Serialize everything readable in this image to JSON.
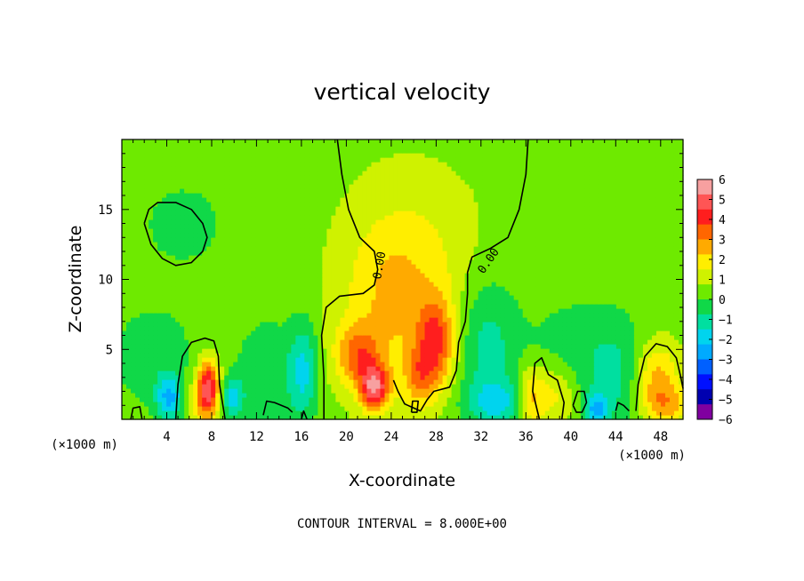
{
  "chart_data": {
    "type": "heatmap",
    "title": "vertical velocity",
    "xlabel": "X-coordinate",
    "ylabel": "Z-coordinate",
    "x_unit_label": "(×1000 m)",
    "x_unit_label_right": "(×1000 m)",
    "xlim": [
      0,
      50
    ],
    "ylim": [
      0,
      20
    ],
    "x_ticks": [
      4,
      8,
      12,
      16,
      20,
      24,
      28,
      32,
      36,
      40,
      44,
      48
    ],
    "y_ticks": [
      5,
      10,
      15
    ],
    "colorbar": {
      "ticks": [
        6,
        5,
        4,
        3,
        2,
        1,
        0,
        -1,
        -2,
        -3,
        -4,
        -5,
        -6
      ],
      "colors": [
        "#f7a0a0",
        "#ff5555",
        "#ff1e1e",
        "#ff6600",
        "#ffaa00",
        "#ffee00",
        "#cff200",
        "#6eea00",
        "#10d848",
        "#00dfa0",
        "#00d4ee",
        "#00aaff",
        "#0060ff",
        "#0010ff",
        "#0000b0",
        "#8000a0"
      ],
      "range": [
        -6,
        6
      ]
    },
    "background_value": 0.5,
    "features": [
      {
        "x": 7.7,
        "z": 2.6,
        "amp": 3.8,
        "sx": 0.7,
        "sz": 1.3
      },
      {
        "x": 7.4,
        "z": 1.2,
        "amp": 2.0,
        "sx": 0.9,
        "sz": 1.2
      },
      {
        "x": 21.0,
        "z": 4.6,
        "amp": 2.4,
        "sx": 1.4,
        "sz": 1.5
      },
      {
        "x": 22.5,
        "z": 2.3,
        "amp": 4.2,
        "sx": 0.9,
        "sz": 1.1
      },
      {
        "x": 23.6,
        "z": 8.0,
        "amp": 1.3,
        "sx": 3.0,
        "sz": 4.5
      },
      {
        "x": 28.0,
        "z": 5.5,
        "amp": 3.0,
        "sx": 1.2,
        "sz": 2.2
      },
      {
        "x": 26.5,
        "z": 3.0,
        "amp": 1.8,
        "sx": 1.0,
        "sz": 1.5
      },
      {
        "x": 26.5,
        "z": 11.0,
        "amp": 1.0,
        "sx": 4.0,
        "sz": 4.5
      },
      {
        "x": 36.5,
        "z": 1.6,
        "amp": 2.4,
        "sx": 0.9,
        "sz": 1.5
      },
      {
        "x": 38.8,
        "z": 1.8,
        "amp": 1.4,
        "sx": 1.2,
        "sz": 1.5
      },
      {
        "x": 47.6,
        "z": 3.0,
        "amp": 2.2,
        "sx": 1.4,
        "sz": 1.8
      },
      {
        "x": 48.6,
        "z": 1.0,
        "amp": 1.6,
        "sx": 1.5,
        "sz": 1.0
      },
      {
        "x": 4.2,
        "z": 1.6,
        "amp": -2.6,
        "sx": 0.8,
        "sz": 1.1
      },
      {
        "x": 9.8,
        "z": 1.6,
        "amp": -2.2,
        "sx": 0.7,
        "sz": 1.0
      },
      {
        "x": 2.8,
        "z": 4.5,
        "amp": -0.9,
        "sx": 3.0,
        "sz": 3.0
      },
      {
        "x": 16.2,
        "z": 3.5,
        "amp": -2.0,
        "sx": 0.9,
        "sz": 2.5
      },
      {
        "x": 13.0,
        "z": 3.0,
        "amp": -1.2,
        "sx": 2.0,
        "sz": 3.0
      },
      {
        "x": 32.5,
        "z": 5.5,
        "amp": -1.6,
        "sx": 2.0,
        "sz": 3.5
      },
      {
        "x": 33.5,
        "z": 1.2,
        "amp": -1.9,
        "sx": 2.0,
        "sz": 1.2
      },
      {
        "x": 42.3,
        "z": 0.7,
        "amp": -2.6,
        "sx": 0.7,
        "sz": 0.8
      },
      {
        "x": 44.2,
        "z": 3.0,
        "amp": -1.3,
        "sx": 2.0,
        "sz": 3.0
      },
      {
        "x": 40.0,
        "z": 5.0,
        "amp": -0.8,
        "sx": 3.0,
        "sz": 3.0
      },
      {
        "x": 5.5,
        "z": 14.0,
        "amp": -1.0,
        "sx": 2.5,
        "sz": 2.0
      }
    ],
    "contours": [
      {
        "value": 0.0,
        "points": [
          [
            19.2,
            20
          ],
          [
            19.6,
            17.5
          ],
          [
            20.2,
            15.0
          ],
          [
            21.2,
            13.0
          ],
          [
            22.5,
            12.0
          ],
          [
            22.8,
            10.7
          ],
          [
            22.5,
            9.6
          ],
          [
            21.5,
            9.0
          ],
          [
            19.4,
            8.8
          ],
          [
            18.2,
            8.0
          ],
          [
            17.8,
            6.0
          ],
          [
            18.0,
            3.0
          ],
          [
            18.0,
            0.0
          ]
        ]
      },
      {
        "value": 0.0,
        "points": [
          [
            36.2,
            20
          ],
          [
            36.0,
            17.5
          ],
          [
            35.4,
            15.0
          ],
          [
            34.4,
            13.0
          ],
          [
            32.8,
            12.2
          ],
          [
            31.2,
            11.6
          ],
          [
            30.8,
            10.5
          ],
          [
            30.8,
            9.0
          ],
          [
            30.6,
            7.0
          ],
          [
            30.0,
            5.5
          ],
          [
            29.8,
            3.5
          ],
          [
            29.2,
            2.3
          ],
          [
            27.8,
            2.0
          ],
          [
            27.2,
            1.4
          ],
          [
            26.6,
            0.6
          ],
          [
            25.2,
            1.1
          ],
          [
            24.6,
            2.0
          ],
          [
            24.2,
            2.8
          ]
        ]
      },
      {
        "value": 0.0,
        "points": [
          [
            2.0,
            14.0
          ],
          [
            2.4,
            15.0
          ],
          [
            3.2,
            15.5
          ],
          [
            4.8,
            15.5
          ],
          [
            6.2,
            15.0
          ],
          [
            7.2,
            14.0
          ],
          [
            7.6,
            13.0
          ],
          [
            7.2,
            12.0
          ],
          [
            6.2,
            11.2
          ],
          [
            4.8,
            11.0
          ],
          [
            3.6,
            11.5
          ],
          [
            2.6,
            12.5
          ],
          [
            2.0,
            14.0
          ]
        ]
      },
      {
        "value": 0.0,
        "points": [
          [
            4.8,
            0.0
          ],
          [
            5.0,
            2.5
          ],
          [
            5.4,
            4.5
          ],
          [
            6.2,
            5.5
          ],
          [
            7.4,
            5.8
          ],
          [
            8.2,
            5.6
          ],
          [
            8.6,
            4.5
          ],
          [
            8.7,
            2.5
          ],
          [
            9.0,
            1.0
          ],
          [
            9.2,
            0.0
          ]
        ]
      },
      {
        "value": 0.0,
        "points": [
          [
            37.2,
            0.0
          ],
          [
            36.6,
            2.0
          ],
          [
            36.8,
            4.0
          ],
          [
            37.4,
            4.4
          ],
          [
            38.0,
            3.2
          ],
          [
            38.8,
            2.8
          ],
          [
            39.4,
            1.2
          ],
          [
            39.2,
            0.0
          ]
        ]
      },
      {
        "value": 0.0,
        "points": [
          [
            45.8,
            0.6
          ],
          [
            46.0,
            2.5
          ],
          [
            46.6,
            4.5
          ],
          [
            47.6,
            5.4
          ],
          [
            48.6,
            5.2
          ],
          [
            49.4,
            4.4
          ],
          [
            49.8,
            3.0
          ],
          [
            50.0,
            2.2
          ]
        ]
      },
      {
        "value": 0.0,
        "points": [
          [
            40.2,
            1.0
          ],
          [
            40.6,
            2.0
          ],
          [
            41.2,
            2.0
          ],
          [
            41.4,
            1.2
          ],
          [
            41.0,
            0.5
          ],
          [
            40.5,
            0.5
          ],
          [
            40.2,
            1.0
          ]
        ]
      },
      {
        "value": 0.0,
        "points": [
          [
            12.6,
            0.3
          ],
          [
            12.9,
            1.3
          ],
          [
            13.6,
            1.2
          ],
          [
            14.8,
            0.8
          ],
          [
            15.2,
            0.5
          ]
        ]
      },
      {
        "value": 0.0,
        "points": [
          [
            0.8,
            0.0
          ],
          [
            1.0,
            0.8
          ],
          [
            1.6,
            0.9
          ],
          [
            1.8,
            0.0
          ]
        ]
      },
      {
        "value": 0.0,
        "points": [
          [
            25.8,
            0.5
          ],
          [
            25.9,
            1.3
          ],
          [
            26.4,
            1.3
          ],
          [
            26.3,
            0.5
          ],
          [
            25.8,
            0.5
          ]
        ]
      },
      {
        "value": 0.0,
        "points": [
          [
            44.0,
            0.6
          ],
          [
            44.2,
            1.2
          ],
          [
            44.7,
            1.0
          ],
          [
            45.2,
            0.6
          ]
        ]
      },
      {
        "value": 0.0,
        "points": [
          [
            16.0,
            0.0
          ],
          [
            16.2,
            0.6
          ],
          [
            16.5,
            0.0
          ]
        ]
      }
    ],
    "contour_labels": [
      {
        "text": "0.00",
        "x": 23.0,
        "z": 11.0,
        "rotate": -80
      },
      {
        "text": "0.00",
        "x": 32.7,
        "z": 11.3,
        "rotate": -55
      }
    ],
    "annotation": "CONTOUR INTERVAL = 8.000E+00"
  }
}
